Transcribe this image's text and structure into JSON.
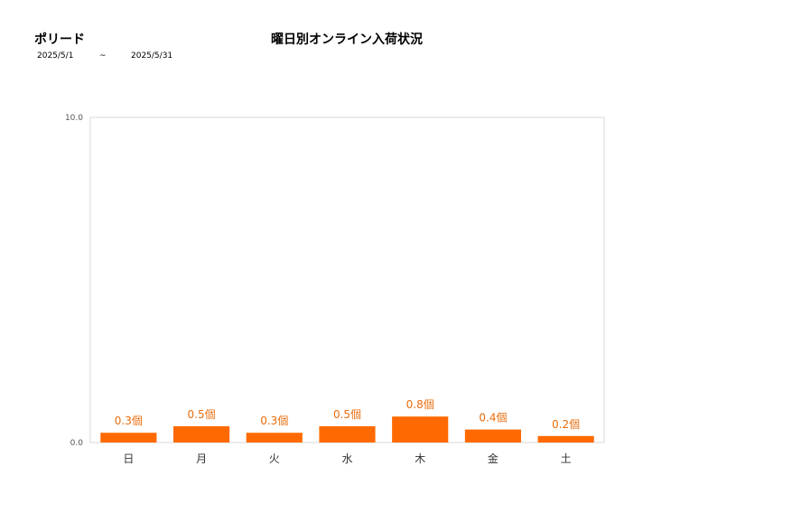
{
  "header": {
    "product_name": "ポリード",
    "title": "曜日別オンライン入荷状況",
    "date_from": "2025/5/1",
    "date_sep": "~",
    "date_to": "2025/5/31"
  },
  "chart_data": {
    "type": "bar",
    "title": "曜日別オンライン入荷状況",
    "categories": [
      "日",
      "月",
      "火",
      "水",
      "木",
      "金",
      "土"
    ],
    "values": [
      0.3,
      0.5,
      0.3,
      0.5,
      0.8,
      0.4,
      0.2
    ],
    "data_labels": [
      "0.3個",
      "0.5個",
      "0.3個",
      "0.5個",
      "0.8個",
      "0.4個",
      "0.2個"
    ],
    "y_ticks": [
      "0.0",
      "10.0"
    ],
    "ylim": [
      0,
      10
    ],
    "grid": false,
    "legend": "none",
    "colors": {
      "bar": "#ff6a00",
      "label": "#e86c0c",
      "frame": "#d9d9d9"
    }
  }
}
